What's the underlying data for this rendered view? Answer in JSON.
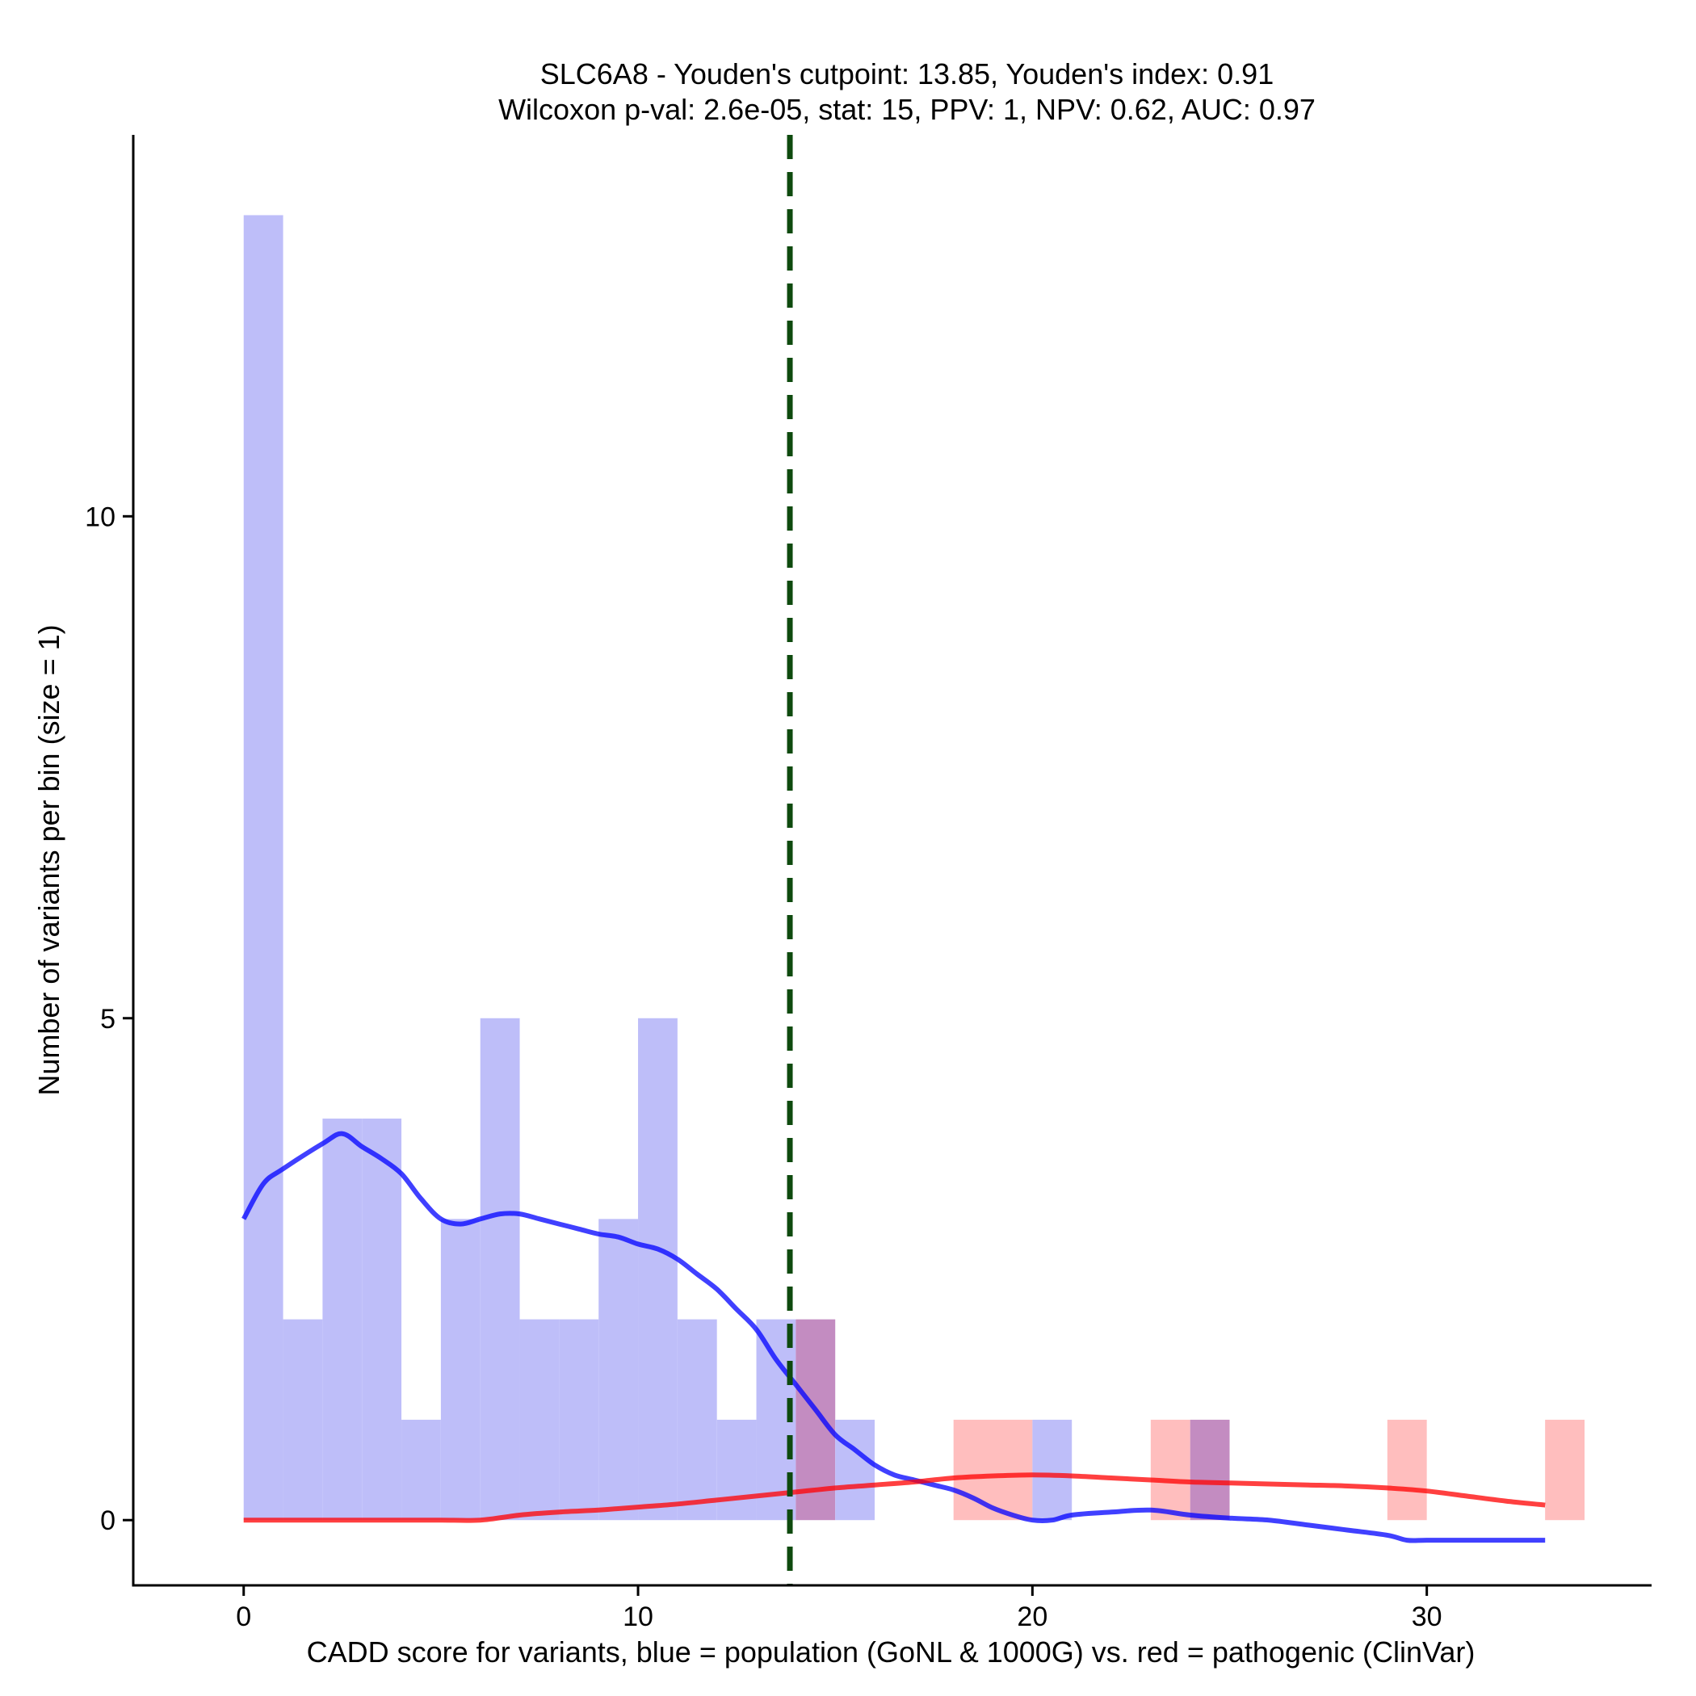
{
  "chart_data": {
    "type": "histogram",
    "title_lines": [
      "SLC6A8 - Youden's cutpoint: 13.85, Youden's index: 0.91",
      "Wilcoxon p-val: 2.6e-05, stat: 15, PPV: 1, NPV: 0.62, AUC: 0.97"
    ],
    "xlabel": "CADD score for variants, blue = population (GoNL & 1000G) vs. red = pathogenic (ClinVar)",
    "ylabel": "Number of variants per bin (size = 1)",
    "xlim": [
      -2.8,
      35.7
    ],
    "ylim": [
      -0.65,
      13.8
    ],
    "x_ticks": [
      0,
      10,
      20,
      30
    ],
    "x_tick_labels": [
      "0",
      "10",
      "20",
      "30"
    ],
    "y_ticks": [
      0,
      5,
      10
    ],
    "y_tick_labels": [
      "0",
      "5",
      "10"
    ],
    "bin_size": 1,
    "cutpoint": 13.85,
    "series": [
      {
        "name": "population (GoNL & 1000G)",
        "color": "#0000ff",
        "bar_color": "#bebef9",
        "bins": [
          {
            "start": 0,
            "count": 13
          },
          {
            "start": 1,
            "count": 2
          },
          {
            "start": 2,
            "count": 4
          },
          {
            "start": 3,
            "count": 4
          },
          {
            "start": 4,
            "count": 1
          },
          {
            "start": 5,
            "count": 3
          },
          {
            "start": 6,
            "count": 5
          },
          {
            "start": 7,
            "count": 2
          },
          {
            "start": 8,
            "count": 2
          },
          {
            "start": 9,
            "count": 3
          },
          {
            "start": 10,
            "count": 5
          },
          {
            "start": 11,
            "count": 2
          },
          {
            "start": 12,
            "count": 1
          },
          {
            "start": 13,
            "count": 2
          },
          {
            "start": 14,
            "count": 2
          },
          {
            "start": 15,
            "count": 1
          },
          {
            "start": 20,
            "count": 1
          },
          {
            "start": 24,
            "count": 1
          }
        ],
        "density": {
          "x": [
            0,
            0.5,
            1,
            2,
            2.5,
            3,
            3.5,
            4,
            4.5,
            5,
            5.5,
            6,
            6.5,
            7,
            7.5,
            8,
            8.5,
            9,
            9.5,
            10,
            10.5,
            11,
            11.5,
            12,
            12.5,
            13,
            13.5,
            14,
            14.5,
            15,
            15.5,
            16,
            16.5,
            17,
            17.5,
            18,
            18.5,
            19,
            19.5,
            20,
            20.5,
            21,
            22,
            23,
            24,
            25,
            26,
            27,
            28,
            29,
            29.5,
            30,
            31,
            32,
            33
          ],
          "y": [
            3.0,
            3.35,
            3.5,
            3.75,
            3.85,
            3.72,
            3.6,
            3.45,
            3.2,
            3.0,
            2.95,
            3.0,
            3.05,
            3.05,
            3.0,
            2.95,
            2.9,
            2.85,
            2.82,
            2.75,
            2.7,
            2.6,
            2.45,
            2.3,
            2.1,
            1.9,
            1.6,
            1.35,
            1.1,
            0.85,
            0.7,
            0.55,
            0.45,
            0.4,
            0.35,
            0.3,
            0.22,
            0.12,
            0.05,
            0.0,
            0.0,
            0.05,
            0.08,
            0.1,
            0.05,
            0.02,
            0.0,
            -0.05,
            -0.1,
            -0.15,
            -0.2,
            -0.2,
            -0.2,
            -0.2,
            -0.2
          ]
        }
      },
      {
        "name": "pathogenic (ClinVar)",
        "color": "#ff0000",
        "bar_color": "#ffbebe",
        "bins": [
          {
            "start": 14,
            "count": 2
          },
          {
            "start": 18,
            "count": 1
          },
          {
            "start": 19,
            "count": 1
          },
          {
            "start": 23,
            "count": 1
          },
          {
            "start": 24,
            "count": 1
          },
          {
            "start": 29,
            "count": 1
          },
          {
            "start": 33,
            "count": 1
          }
        ],
        "density": {
          "x": [
            0,
            1,
            2,
            3,
            4,
            5,
            6,
            7,
            8,
            9,
            10,
            11,
            12,
            13,
            14,
            15,
            16,
            17,
            18,
            19,
            20,
            21,
            22,
            23,
            24,
            25,
            26,
            27,
            28,
            29,
            30,
            31,
            32,
            33
          ],
          "y": [
            0.0,
            0.0,
            0.0,
            0.0,
            0.0,
            0.0,
            0.0,
            0.05,
            0.08,
            0.1,
            0.13,
            0.16,
            0.2,
            0.24,
            0.28,
            0.32,
            0.35,
            0.38,
            0.42,
            0.44,
            0.45,
            0.44,
            0.42,
            0.4,
            0.38,
            0.37,
            0.36,
            0.35,
            0.34,
            0.32,
            0.29,
            0.24,
            0.19,
            0.15
          ]
        }
      }
    ],
    "overlap_color": "#c38cc1",
    "cutpoint_color": "#0e4a0e"
  }
}
